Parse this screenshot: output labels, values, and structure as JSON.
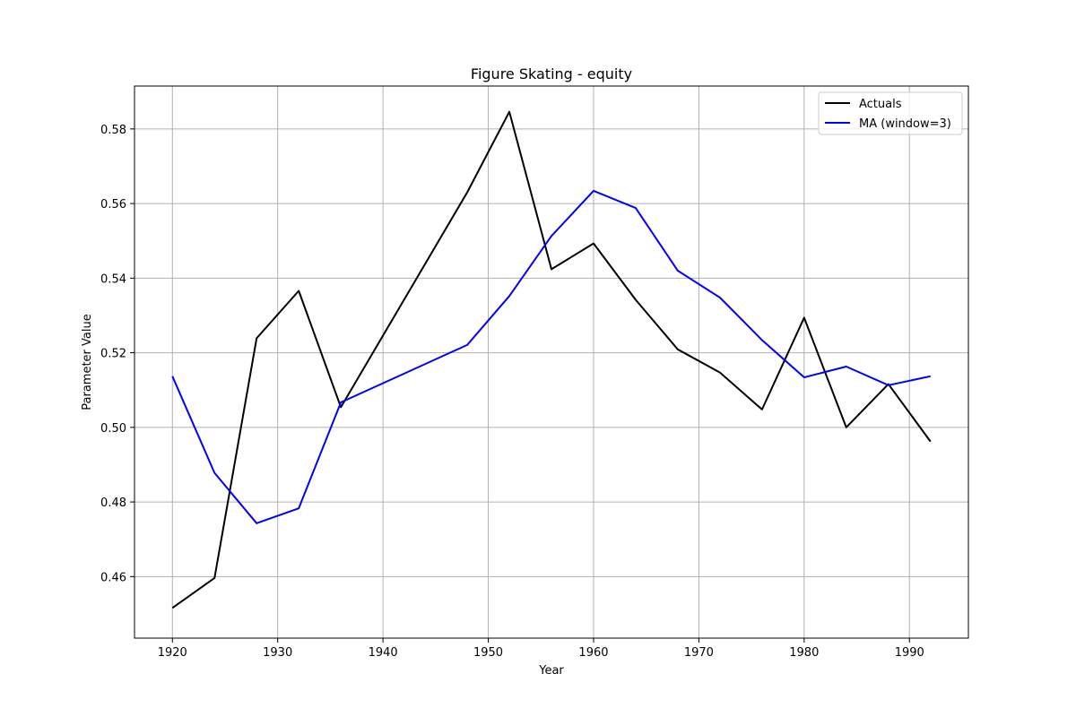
{
  "chart_data": {
    "type": "line",
    "title": "Figure Skating - equity",
    "xlabel": "Year",
    "ylabel": "Parameter Value",
    "xlim": [
      1916.4,
      1995.6
    ],
    "ylim": [
      0.4435,
      0.5915
    ],
    "xticks": [
      1920,
      1930,
      1940,
      1950,
      1960,
      1970,
      1980,
      1990
    ],
    "yticks": [
      0.46,
      0.48,
      0.5,
      0.52,
      0.54,
      0.56,
      0.58
    ],
    "ytick_labels": [
      "0.46",
      "0.48",
      "0.50",
      "0.52",
      "0.54",
      "0.56",
      "0.58"
    ],
    "grid": true,
    "legend_position": "top-right",
    "series": [
      {
        "name": "Actuals",
        "color": "#000000",
        "x": [
          1920,
          1924,
          1928,
          1932,
          1936,
          1948,
          1952,
          1956,
          1960,
          1964,
          1968,
          1972,
          1976,
          1980,
          1984,
          1988,
          1992
        ],
        "y": [
          0.4516,
          0.4596,
          0.5239,
          0.5366,
          0.5054,
          0.563,
          0.5846,
          0.5424,
          0.5493,
          0.5342,
          0.5209,
          0.5147,
          0.5048,
          0.5294,
          0.5,
          0.5116,
          0.4962
        ]
      },
      {
        "name": "MA (window=3)",
        "color": "#0000ff",
        "x": [
          1920,
          1924,
          1928,
          1932,
          1936,
          1948,
          1952,
          1956,
          1960,
          1964,
          1968,
          1972,
          1976,
          1980,
          1984,
          1988,
          1992
        ],
        "y": [
          0.5137,
          0.4878,
          0.4743,
          0.4783,
          0.5067,
          0.5221,
          0.5352,
          0.5513,
          0.5634,
          0.5588,
          0.542,
          0.5348,
          0.5234,
          0.5134,
          0.5163,
          0.5113,
          0.5137
        ]
      }
    ]
  }
}
